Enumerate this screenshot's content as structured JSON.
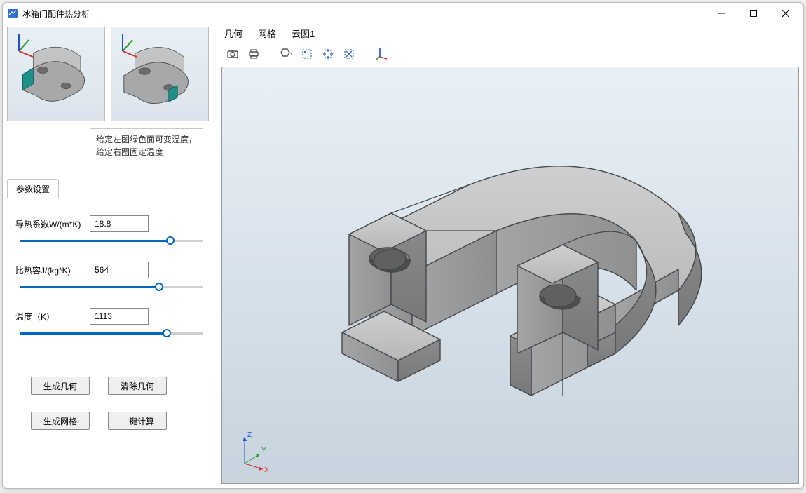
{
  "window": {
    "title": "冰箱门配件热分析",
    "minimize": "−",
    "maximize": "□",
    "close": "×",
    "icon_colors": {
      "body": "#2f6fd1",
      "stroke": "#ffffff"
    }
  },
  "thumbnails": {
    "hint_text": "给定左图绿色面可变温度，给定右图固定温度",
    "panel_bg_top": "#e9f0f6",
    "panel_bg_bottom": "#dbe4ec",
    "part_fill": "#a6a8aa",
    "part_stroke": "#4a4a4a",
    "highlight_left": "#1e8f8b",
    "highlight_right": "#1e8f8b"
  },
  "tabs": {
    "param_tab": "参数设置"
  },
  "parameters": {
    "thermal_conductivity": {
      "label": "导热系数W/(m*K)",
      "value": "18.8",
      "slider_percent": 82
    },
    "specific_heat": {
      "label": "比热容J/(kg*K)",
      "value": "564",
      "slider_percent": 76
    },
    "temperature": {
      "label": "温度（K）",
      "value": "1113",
      "slider_percent": 80
    },
    "slider_track_color": "#cfcfcf",
    "slider_fill_color": "#0067c0"
  },
  "buttons": {
    "gen_geometry": "生成几何",
    "clear_geometry": "清除几何",
    "gen_mesh": "生成网格",
    "one_click_compute": "一键计算"
  },
  "viewer": {
    "menu": {
      "geometry": "几何",
      "mesh": "网格",
      "cloud1": "云图1"
    },
    "bg_top": "#e9f0f6",
    "bg_bottom": "#c7d3de",
    "part_top_fill": "#c1c3c5",
    "part_front_fill": "#9d9fa1",
    "part_side_fill": "#7e8082",
    "part_hole_shadow": "#6a6c6e",
    "part_stroke": "#454749",
    "triad": {
      "x_color": "#d83030",
      "x_label": "X",
      "y_color": "#2c962c",
      "y_label": "Y",
      "z_color": "#2050d0",
      "z_label": "Z"
    }
  },
  "toolbar": {
    "camera": "camera-icon",
    "print": "print-icon",
    "hex_dropdown": "hex-dropdown-icon",
    "select_box": "select-box-icon",
    "select_expand": "select-expand-icon",
    "select_cross": "select-cross-icon",
    "mini_triad": "mini-triad-icon",
    "icon_stroke": "#555",
    "icon_accent": "#3a6fc4"
  }
}
